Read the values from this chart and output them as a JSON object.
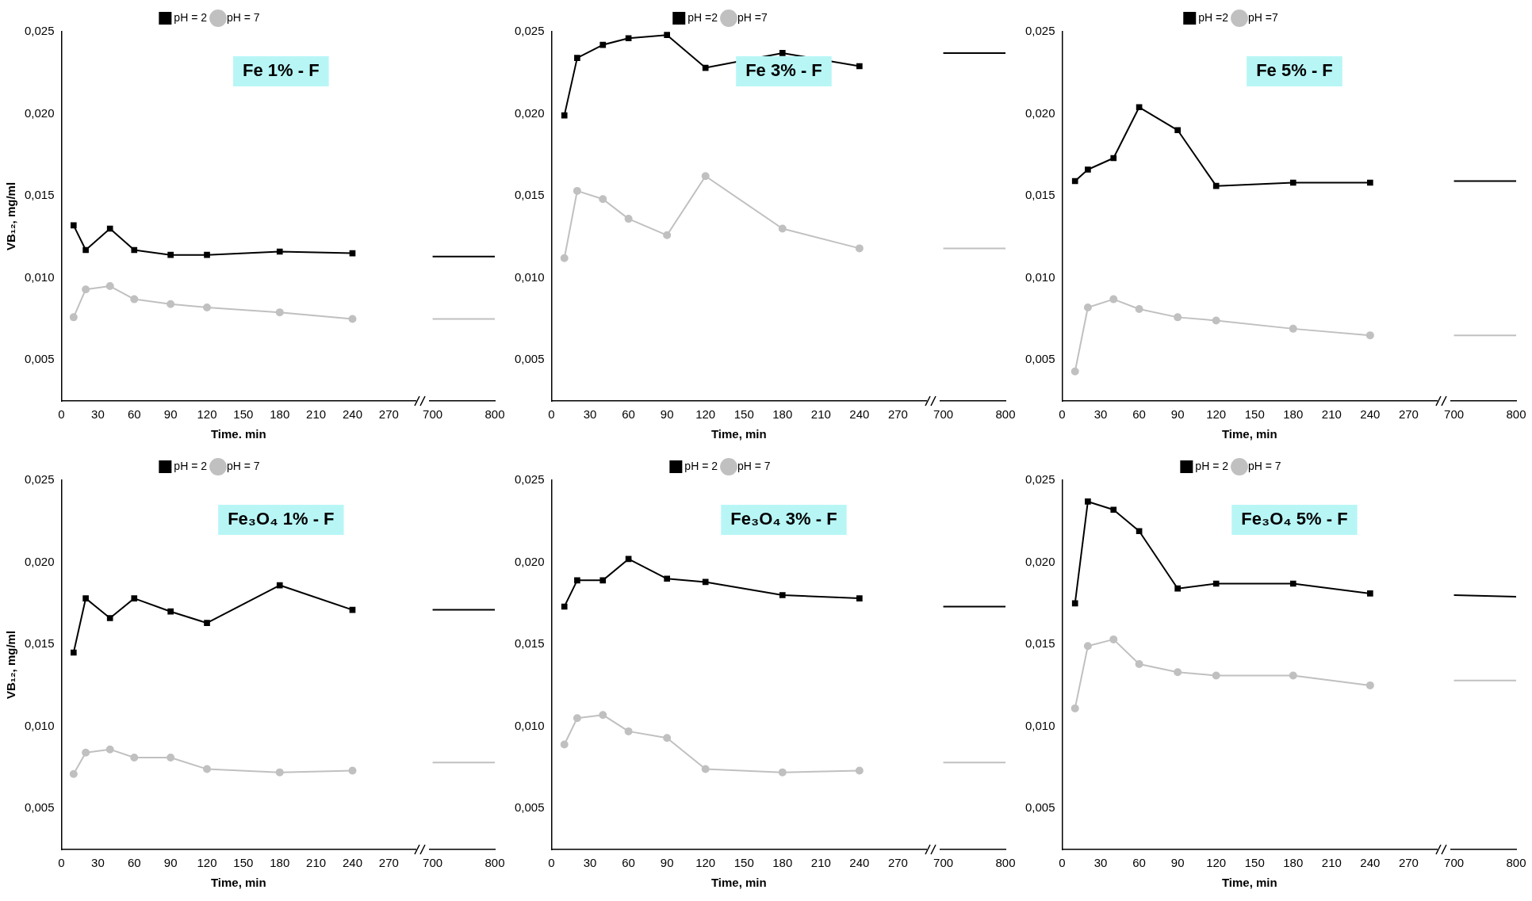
{
  "chart_data": [
    {
      "type": "line",
      "title": "Fe 1% - F",
      "xlabel": "Time. min",
      "ylabel": "VB₁₂, mg/ml",
      "x": [
        10,
        20,
        40,
        60,
        90,
        120,
        180,
        240
      ],
      "xlim": [
        0,
        292
      ],
      "xticks": [
        0,
        30,
        60,
        90,
        120,
        150,
        180,
        210,
        240,
        270
      ],
      "ylim": [
        0.0025,
        0.025
      ],
      "yticks": [
        {
          "value": 0.005,
          "label": "0,005"
        },
        {
          "value": 0.01,
          "label": "0,010"
        },
        {
          "value": 0.015,
          "label": "0,015"
        },
        {
          "value": 0.02,
          "label": "0,020"
        },
        {
          "value": 0.025,
          "label": "0,025"
        }
      ],
      "legend": "top",
      "series": [
        {
          "name": "pH = 2",
          "color": "#000000",
          "marker": "square",
          "values": [
            0.0132,
            0.0117,
            0.013,
            0.0117,
            0.0114,
            0.0114,
            0.0116,
            0.0115
          ]
        },
        {
          "name": "pH = 7",
          "color": "#c0c0c0",
          "marker": "circle",
          "values": [
            0.0076,
            0.0093,
            0.0095,
            0.0087,
            0.0084,
            0.0082,
            0.0079,
            0.0075
          ]
        }
      ]
    },
    {
      "type": "line",
      "x": [
        700,
        800
      ],
      "xlim": [
        695,
        800
      ],
      "xticks": [
        700,
        800
      ],
      "ylim": [
        0.0025,
        0.025
      ],
      "tick_labels": "x",
      "series": [
        {
          "color": "#000000",
          "values": [
            0.0113,
            0.0113
          ]
        },
        {
          "color": "#c0c0c0",
          "values": [
            0.0075,
            0.0075
          ]
        }
      ]
    },
    {
      "type": "line",
      "title": "Fe 3% - F",
      "xlabel": "Time, min",
      "x": [
        10,
        20,
        40,
        60,
        90,
        120,
        180,
        240
      ],
      "xlim": [
        0,
        292
      ],
      "xticks": [
        0,
        30,
        60,
        90,
        120,
        150,
        180,
        210,
        240,
        270
      ],
      "ylim": [
        0.0025,
        0.025
      ],
      "yticks": [
        {
          "value": 0.005,
          "label": "0,005"
        },
        {
          "value": 0.01,
          "label": "0,010"
        },
        {
          "value": 0.015,
          "label": "0,015"
        },
        {
          "value": 0.02,
          "label": "0,020"
        },
        {
          "value": 0.025,
          "label": "0,025"
        }
      ],
      "legend": "top",
      "series": [
        {
          "name": "pH =2",
          "color": "#000000",
          "marker": "square",
          "values": [
            0.0199,
            0.0234,
            0.0242,
            0.0246,
            0.0248,
            0.0228,
            0.0237,
            0.0229
          ]
        },
        {
          "name": "pH =7",
          "color": "#c0c0c0",
          "marker": "circle",
          "values": [
            0.0112,
            0.0153,
            0.0148,
            0.0136,
            0.0126,
            0.0162,
            0.013,
            0.0118
          ]
        }
      ]
    },
    {
      "type": "line",
      "x": [
        700,
        800
      ],
      "xlim": [
        695,
        800
      ],
      "xticks": [
        700,
        800
      ],
      "ylim": [
        0.0025,
        0.025
      ],
      "tick_labels": "x",
      "series": [
        {
          "color": "#000000",
          "values": [
            0.0237,
            0.0237
          ]
        },
        {
          "color": "#c0c0c0",
          "values": [
            0.0118,
            0.0118
          ]
        }
      ]
    },
    {
      "type": "line",
      "title": "Fe 5% - F",
      "xlabel": "Time, min",
      "x": [
        10,
        20,
        40,
        60,
        90,
        120,
        180,
        240
      ],
      "xlim": [
        0,
        292
      ],
      "xticks": [
        0,
        30,
        60,
        90,
        120,
        150,
        180,
        210,
        240,
        270
      ],
      "ylim": [
        0.0025,
        0.025
      ],
      "yticks": [
        {
          "value": 0.005,
          "label": "0,005"
        },
        {
          "value": 0.01,
          "label": "0,010"
        },
        {
          "value": 0.015,
          "label": "0,015"
        },
        {
          "value": 0.02,
          "label": "0,020"
        },
        {
          "value": 0.025,
          "label": "0,025"
        }
      ],
      "legend": "top",
      "series": [
        {
          "name": "pH =2",
          "color": "#000000",
          "marker": "square",
          "values": [
            0.0159,
            0.0166,
            0.0173,
            0.0204,
            0.019,
            0.0156,
            0.0158,
            0.0158
          ]
        },
        {
          "name": "pH =7",
          "color": "#c0c0c0",
          "marker": "circle",
          "values": [
            0.0043,
            0.0082,
            0.0087,
            0.0081,
            0.0076,
            0.0074,
            0.0069,
            0.0065
          ]
        }
      ]
    },
    {
      "type": "line",
      "x": [
        700,
        800
      ],
      "xlim": [
        695,
        800
      ],
      "xticks": [
        700,
        800
      ],
      "ylim": [
        0.0025,
        0.025
      ],
      "tick_labels": "x",
      "series": [
        {
          "color": "#000000",
          "values": [
            0.0159,
            0.0159
          ]
        },
        {
          "color": "#c0c0c0",
          "values": [
            0.0065,
            0.0065
          ]
        }
      ]
    },
    {
      "type": "line",
      "title": "Fe₃O₄ 1% - F",
      "xlabel": "Time, min",
      "ylabel": "VB₁₂, mg/ml",
      "x": [
        10,
        20,
        40,
        60,
        90,
        120,
        180,
        240
      ],
      "xlim": [
        0,
        292
      ],
      "xticks": [
        0,
        30,
        60,
        90,
        120,
        150,
        180,
        210,
        240,
        270
      ],
      "ylim": [
        0.0025,
        0.025
      ],
      "yticks": [
        {
          "value": 0.005,
          "label": "0,005"
        },
        {
          "value": 0.01,
          "label": "0,010"
        },
        {
          "value": 0.015,
          "label": "0,015"
        },
        {
          "value": 0.02,
          "label": "0,020"
        },
        {
          "value": 0.025,
          "label": "0,025"
        }
      ],
      "legend": "top",
      "series": [
        {
          "name": "pH = 2",
          "color": "#000000",
          "marker": "square",
          "values": [
            0.0145,
            0.0178,
            0.0166,
            0.0178,
            0.017,
            0.0163,
            0.0186,
            0.0171
          ]
        },
        {
          "name": "pH = 7",
          "color": "#c0c0c0",
          "marker": "circle",
          "values": [
            0.0071,
            0.0084,
            0.0086,
            0.0081,
            0.0081,
            0.0074,
            0.0072,
            0.0073
          ]
        }
      ]
    },
    {
      "type": "line",
      "x": [
        700,
        800
      ],
      "xlim": [
        695,
        800
      ],
      "xticks": [
        700,
        800
      ],
      "ylim": [
        0.0025,
        0.025
      ],
      "tick_labels": "x",
      "series": [
        {
          "color": "#000000",
          "values": [
            0.0171,
            0.0171
          ]
        },
        {
          "color": "#c0c0c0",
          "values": [
            0.0078,
            0.0078
          ]
        }
      ]
    },
    {
      "type": "line",
      "title": "Fe₃O₄ 3% - F",
      "xlabel": "Time, min",
      "x": [
        10,
        20,
        40,
        60,
        90,
        120,
        180,
        240
      ],
      "xlim": [
        0,
        292
      ],
      "xticks": [
        0,
        30,
        60,
        90,
        120,
        150,
        180,
        210,
        240,
        270
      ],
      "ylim": [
        0.0025,
        0.025
      ],
      "yticks": [
        {
          "value": 0.005,
          "label": "0,005"
        },
        {
          "value": 0.01,
          "label": "0,010"
        },
        {
          "value": 0.015,
          "label": "0,015"
        },
        {
          "value": 0.02,
          "label": "0,020"
        },
        {
          "value": 0.025,
          "label": "0,025"
        }
      ],
      "legend": "top",
      "series": [
        {
          "name": "pH = 2",
          "color": "#000000",
          "marker": "square",
          "values": [
            0.0173,
            0.0189,
            0.0189,
            0.0202,
            0.019,
            0.0188,
            0.018,
            0.0178
          ]
        },
        {
          "name": "pH = 7",
          "color": "#c0c0c0",
          "marker": "circle",
          "values": [
            0.0089,
            0.0105,
            0.0107,
            0.0097,
            0.0093,
            0.0074,
            0.0072,
            0.0073
          ]
        }
      ]
    },
    {
      "type": "line",
      "x": [
        700,
        800
      ],
      "xlim": [
        695,
        800
      ],
      "xticks": [
        700,
        800
      ],
      "ylim": [
        0.0025,
        0.025
      ],
      "tick_labels": "x",
      "series": [
        {
          "color": "#000000",
          "values": [
            0.0173,
            0.0173
          ]
        },
        {
          "color": "#c0c0c0",
          "values": [
            0.0078,
            0.0078
          ]
        }
      ]
    },
    {
      "type": "line",
      "title": "Fe₃O₄ 5% - F",
      "xlabel": "Time, min",
      "x": [
        10,
        20,
        40,
        60,
        90,
        120,
        180,
        240
      ],
      "xlim": [
        0,
        292
      ],
      "xticks": [
        0,
        30,
        60,
        90,
        120,
        150,
        180,
        210,
        240,
        270
      ],
      "ylim": [
        0.0025,
        0.025
      ],
      "yticks": [
        {
          "value": 0.005,
          "label": "0,005"
        },
        {
          "value": 0.01,
          "label": "0,010"
        },
        {
          "value": 0.015,
          "label": "0,015"
        },
        {
          "value": 0.02,
          "label": "0,020"
        },
        {
          "value": 0.025,
          "label": "0,025"
        }
      ],
      "legend": "top",
      "series": [
        {
          "name": "pH = 2",
          "color": "#000000",
          "marker": "square",
          "values": [
            0.0175,
            0.0237,
            0.0232,
            0.0219,
            0.0184,
            0.0187,
            0.0187,
            0.0181
          ]
        },
        {
          "name": "pH = 7",
          "color": "#c0c0c0",
          "marker": "circle",
          "values": [
            0.0111,
            0.0149,
            0.0153,
            0.0138,
            0.0133,
            0.0131,
            0.0131,
            0.0125
          ]
        }
      ]
    },
    {
      "type": "line",
      "x": [
        700,
        800
      ],
      "xlim": [
        695,
        800
      ],
      "xticks": [
        700,
        800
      ],
      "ylim": [
        0.0025,
        0.025
      ],
      "tick_labels": "x",
      "series": [
        {
          "color": "#000000",
          "values": [
            0.018,
            0.0179
          ]
        },
        {
          "color": "#c0c0c0",
          "values": [
            0.0128,
            0.0128
          ]
        }
      ]
    }
  ]
}
